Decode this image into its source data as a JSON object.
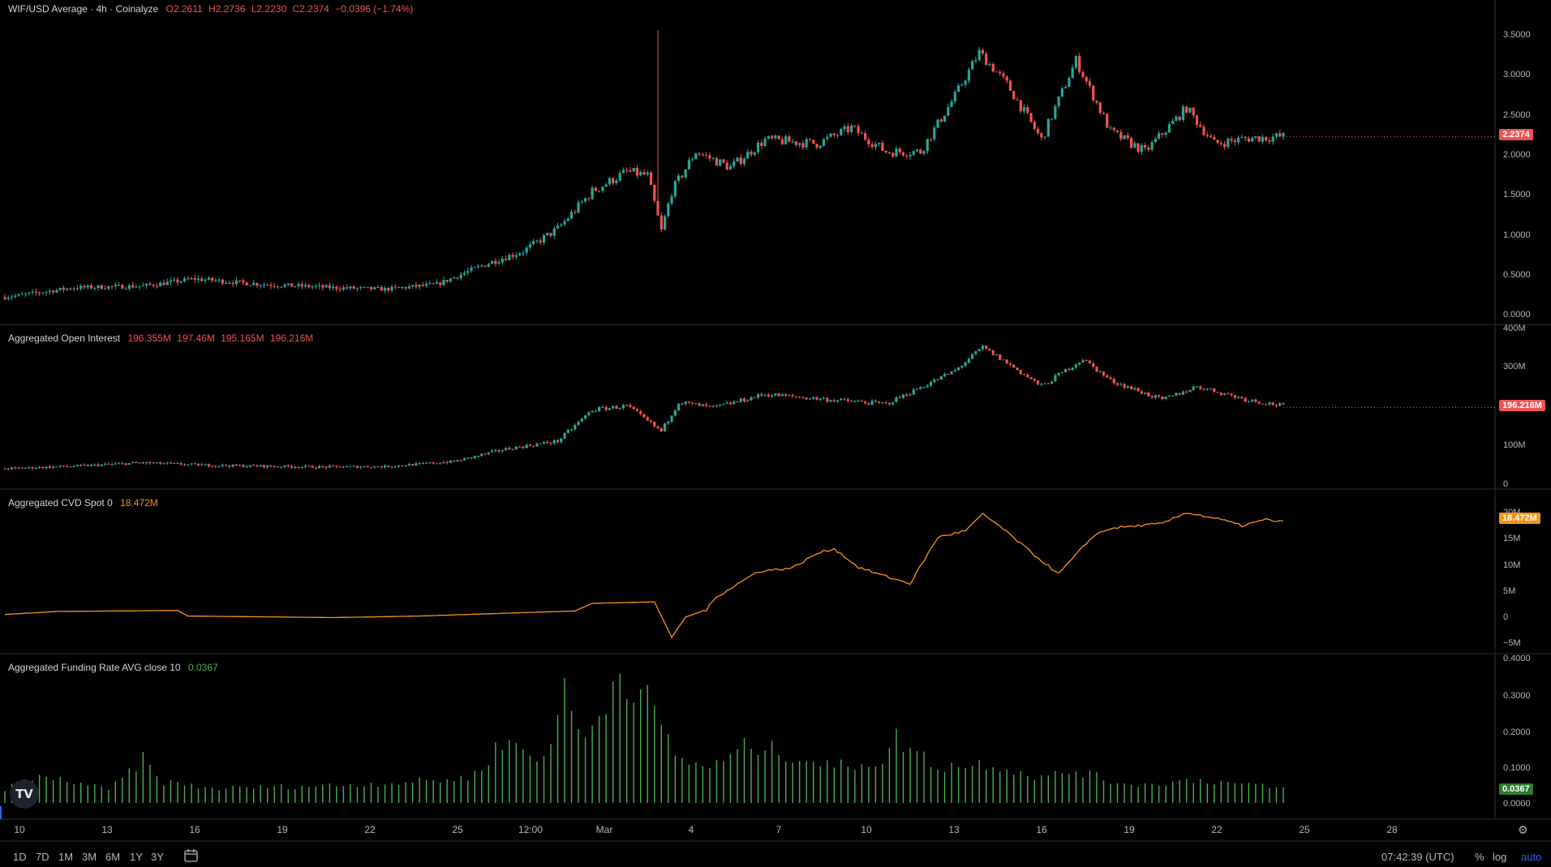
{
  "legend": {
    "price": {
      "name": "WIF/USD Average · 4h · Coinalyze",
      "o": "O2.2611",
      "h": "H2.2736",
      "l": "L2.2230",
      "c": "C2.2374",
      "chg": "−0.0396 (−1.74%)"
    },
    "oi": {
      "name": "Aggregated Open Interest",
      "o": "196.355M",
      "h": "197.46M",
      "l": "195.165M",
      "c": "196.216M"
    },
    "cvd": {
      "name": "Aggregated CVD Spot 0",
      "v": "18.472M"
    },
    "funding": {
      "name": "Aggregated Funding Rate AVG close 10",
      "v": "0.0367"
    }
  },
  "tags": {
    "price": "2.2374",
    "oi": "196.216M",
    "cvd": "18.472M",
    "funding": "0.0367"
  },
  "logo": "TV",
  "bottom": {
    "timeframes": [
      "1D",
      "7D",
      "1M",
      "3M",
      "6M",
      "1Y",
      "3Y"
    ],
    "clock": "07:42:39 (UTC)",
    "percent": "%",
    "log": "log",
    "auto": "auto"
  },
  "colors": {
    "up": "#26a69a",
    "down": "#ef5350",
    "cvd": "#f7931a",
    "funding": "#4caf50",
    "grid": "#2a2e39",
    "text": "#b2b5be"
  },
  "chart_data": [
    {
      "type": "candlestick",
      "title": "WIF/USD Average · 4h · Coinalyze",
      "x_ticks": [
        "10",
        "13",
        "16",
        "19",
        "22",
        "25",
        "12:00",
        "Mar",
        "4",
        "7",
        "10",
        "13",
        "16",
        "19",
        "22",
        "25",
        "28"
      ],
      "y_ticks": [
        "3.5000",
        "3.0000",
        "2.5000",
        "2.0000",
        "1.5000",
        "1.0000",
        "0.5000",
        "0.0000"
      ],
      "ylim": [
        0,
        3.6
      ],
      "last": 2.2374,
      "close_path": [
        [
          0,
          0.22
        ],
        [
          20,
          0.34
        ],
        [
          40,
          0.36
        ],
        [
          55,
          0.45
        ],
        [
          75,
          0.38
        ],
        [
          95,
          0.34
        ],
        [
          110,
          0.32
        ],
        [
          125,
          0.38
        ],
        [
          140,
          0.65
        ],
        [
          150,
          0.8
        ],
        [
          160,
          1.08
        ],
        [
          170,
          1.55
        ],
        [
          180,
          1.8
        ],
        [
          186,
          1.75
        ],
        [
          190,
          1.05
        ],
        [
          193,
          1.55
        ],
        [
          200,
          2.05
        ],
        [
          210,
          1.85
        ],
        [
          220,
          2.2
        ],
        [
          235,
          2.15
        ],
        [
          245,
          2.35
        ],
        [
          255,
          2.05
        ],
        [
          265,
          2.05
        ],
        [
          275,
          2.75
        ],
        [
          282,
          3.3
        ],
        [
          290,
          2.9
        ],
        [
          300,
          2.2
        ],
        [
          310,
          3.2
        ],
        [
          320,
          2.3
        ],
        [
          330,
          2.05
        ],
        [
          342,
          2.6
        ],
        [
          350,
          2.15
        ],
        [
          360,
          2.22
        ],
        [
          370,
          2.24
        ]
      ],
      "spike": {
        "index": 189,
        "high": 3.58
      }
    },
    {
      "type": "candlestick",
      "title": "Aggregated Open Interest",
      "y_ticks": [
        "400M",
        "300M",
        "100M",
        "0"
      ],
      "ylim": [
        0,
        400
      ],
      "last": 196.216,
      "close_path": [
        [
          0,
          40
        ],
        [
          20,
          46
        ],
        [
          40,
          55
        ],
        [
          60,
          48
        ],
        [
          90,
          44
        ],
        [
          110,
          45
        ],
        [
          130,
          58
        ],
        [
          145,
          90
        ],
        [
          160,
          110
        ],
        [
          170,
          190
        ],
        [
          180,
          200
        ],
        [
          190,
          135
        ],
        [
          195,
          210
        ],
        [
          205,
          195
        ],
        [
          220,
          230
        ],
        [
          240,
          215
        ],
        [
          255,
          205
        ],
        [
          275,
          290
        ],
        [
          283,
          350
        ],
        [
          290,
          310
        ],
        [
          300,
          250
        ],
        [
          312,
          320
        ],
        [
          320,
          265
        ],
        [
          335,
          215
        ],
        [
          345,
          250
        ],
        [
          360,
          215
        ],
        [
          370,
          200
        ]
      ]
    },
    {
      "type": "line",
      "title": "Aggregated CVD Spot 0",
      "y_ticks": [
        "20M",
        "15M",
        "10M",
        "5M",
        "0",
        "−5M"
      ],
      "ylim": [
        -5.5,
        21.5
      ],
      "last": 18.472,
      "path": [
        [
          0,
          0.3
        ],
        [
          15,
          0.9
        ],
        [
          50,
          1.1
        ],
        [
          53,
          0.0
        ],
        [
          95,
          -0.3
        ],
        [
          120,
          0.0
        ],
        [
          165,
          1.0
        ],
        [
          170,
          2.5
        ],
        [
          188,
          2.8
        ],
        [
          190,
          0.0
        ],
        [
          193,
          -4.2
        ],
        [
          197,
          -0.2
        ],
        [
          203,
          1.2
        ],
        [
          206,
          3.8
        ],
        [
          212,
          6.3
        ],
        [
          218,
          8.8
        ],
        [
          228,
          9.5
        ],
        [
          235,
          12.3
        ],
        [
          240,
          13.3
        ],
        [
          247,
          9.6
        ],
        [
          255,
          7.8
        ],
        [
          262,
          6.4
        ],
        [
          270,
          15.5
        ],
        [
          278,
          16.8
        ],
        [
          283,
          20.0
        ],
        [
          287,
          18.2
        ],
        [
          298,
          12.0
        ],
        [
          305,
          8.3
        ],
        [
          315,
          15.8
        ],
        [
          320,
          17.3
        ],
        [
          335,
          18.2
        ],
        [
          342,
          20.4
        ],
        [
          352,
          19.0
        ],
        [
          358,
          17.8
        ],
        [
          365,
          19.0
        ],
        [
          370,
          18.5
        ]
      ]
    },
    {
      "type": "bar",
      "title": "Aggregated Funding Rate AVG close 10",
      "y_ticks": [
        "0.4000",
        "0.3000",
        "0.2000",
        "0.1000",
        "0.0000"
      ],
      "ylim": [
        0,
        0.4
      ],
      "last": 0.0367,
      "path": [
        [
          0,
          0.04
        ],
        [
          10,
          0.07
        ],
        [
          20,
          0.06
        ],
        [
          30,
          0.035
        ],
        [
          40,
          0.12
        ],
        [
          45,
          0.06
        ],
        [
          60,
          0.04
        ],
        [
          80,
          0.045
        ],
        [
          100,
          0.05
        ],
        [
          120,
          0.06
        ],
        [
          135,
          0.07
        ],
        [
          145,
          0.18
        ],
        [
          155,
          0.11
        ],
        [
          162,
          0.3
        ],
        [
          168,
          0.17
        ],
        [
          178,
          0.37
        ],
        [
          185,
          0.3
        ],
        [
          195,
          0.12
        ],
        [
          205,
          0.1
        ],
        [
          215,
          0.16
        ],
        [
          225,
          0.14
        ],
        [
          240,
          0.1
        ],
        [
          255,
          0.12
        ],
        [
          258,
          0.18
        ],
        [
          270,
          0.1
        ],
        [
          285,
          0.11
        ],
        [
          300,
          0.07
        ],
        [
          310,
          0.09
        ],
        [
          320,
          0.06
        ],
        [
          330,
          0.05
        ],
        [
          345,
          0.065
        ],
        [
          360,
          0.05
        ],
        [
          370,
          0.04
        ]
      ]
    }
  ]
}
